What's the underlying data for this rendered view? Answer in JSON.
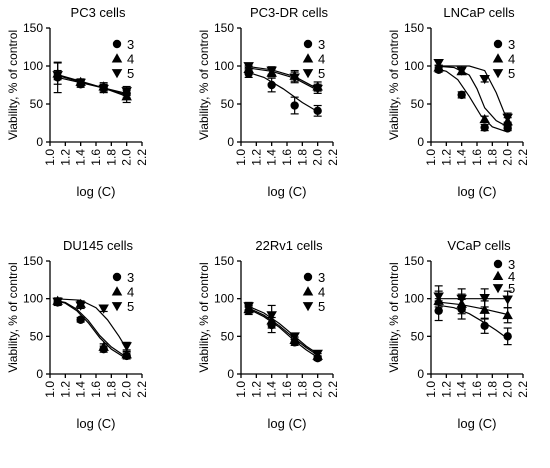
{
  "chart_data": [
    {
      "type": "scatter",
      "title": "PC3 cells",
      "xlabel": "log (C)",
      "ylabel": "Viability, % of control",
      "xlim": [
        1.0,
        2.2
      ],
      "ylim": [
        0,
        150
      ],
      "xticks": [
        "1.0",
        "1.2",
        "1.4",
        "1.6",
        "1.8",
        "2.0",
        "2.2"
      ],
      "yticks": [
        "0",
        "50",
        "100",
        "150"
      ],
      "grid": false,
      "legend_position": "top-right",
      "series": [
        {
          "name": "3",
          "marker": "circle",
          "x": [
            1.1,
            1.4,
            1.7,
            2.0
          ],
          "y": [
            85,
            76,
            71,
            64
          ],
          "err": [
            20,
            4,
            5,
            6
          ],
          "fit": [
            [
              1.05,
              86
            ],
            [
              1.4,
              78
            ],
            [
              1.7,
              71
            ],
            [
              2.0,
              62
            ]
          ]
        },
        {
          "name": "4",
          "marker": "triangle-up",
          "x": [
            1.1,
            1.4,
            1.7,
            2.0
          ],
          "y": [
            90,
            79,
            73,
            60
          ],
          "err": [
            14,
            4,
            5,
            8
          ],
          "fit": [
            [
              1.05,
              90
            ],
            [
              1.4,
              80
            ],
            [
              1.7,
              71
            ],
            [
              2.0,
              60
            ]
          ]
        },
        {
          "name": "5",
          "marker": "triangle-down",
          "x": [
            1.1,
            1.4,
            1.7,
            2.0
          ],
          "y": [
            88,
            78,
            70,
            67
          ],
          "err": [
            6,
            4,
            5,
            6
          ],
          "fit": [
            [
              1.05,
              89
            ],
            [
              1.4,
              79
            ],
            [
              1.7,
              71
            ],
            [
              2.0,
              64
            ]
          ]
        }
      ]
    },
    {
      "type": "scatter",
      "title": "PC3-DR cells",
      "xlabel": "log (C)",
      "ylabel": "Viability, % of control",
      "xlim": [
        1.0,
        2.2
      ],
      "ylim": [
        0,
        150
      ],
      "xticks": [
        "1.0",
        "1.2",
        "1.4",
        "1.6",
        "1.8",
        "2.0",
        "2.2"
      ],
      "yticks": [
        "0",
        "50",
        "100",
        "150"
      ],
      "grid": false,
      "legend_position": "top-right",
      "series": [
        {
          "name": "3",
          "marker": "circle",
          "x": [
            1.1,
            1.4,
            1.7,
            2.0
          ],
          "y": [
            90,
            75,
            48,
            41
          ],
          "err": [
            5,
            9,
            11,
            7
          ],
          "fit": [
            [
              1.05,
              93
            ],
            [
              1.3,
              85
            ],
            [
              1.55,
              70
            ],
            [
              1.8,
              52
            ],
            [
              2.0,
              40
            ]
          ]
        },
        {
          "name": "4",
          "marker": "triangle-up",
          "x": [
            1.1,
            1.4,
            1.7,
            2.0
          ],
          "y": [
            96,
            91,
            87,
            73
          ],
          "err": [
            4,
            5,
            7,
            6
          ],
          "fit": [
            [
              1.05,
              98
            ],
            [
              1.4,
              93
            ],
            [
              1.7,
              84
            ],
            [
              2.0,
              68
            ]
          ]
        },
        {
          "name": "5",
          "marker": "triangle-down",
          "x": [
            1.1,
            1.4,
            1.7,
            2.0
          ],
          "y": [
            100,
            94,
            85,
            70
          ],
          "err": [
            3,
            5,
            7,
            6
          ],
          "fit": [
            [
              1.05,
              100
            ],
            [
              1.4,
              95
            ],
            [
              1.7,
              86
            ],
            [
              2.0,
              70
            ]
          ]
        }
      ]
    },
    {
      "type": "scatter",
      "title": "LNCaP cells",
      "xlabel": "log (C)",
      "ylabel": "Viability, % of control",
      "xlim": [
        1.0,
        2.2
      ],
      "ylim": [
        0,
        150
      ],
      "xticks": [
        "1.0",
        "1.2",
        "1.4",
        "1.6",
        "1.8",
        "2.0",
        "2.2"
      ],
      "yticks": [
        "0",
        "50",
        "100",
        "150"
      ],
      "grid": false,
      "legend_position": "top-right",
      "series": [
        {
          "name": "3",
          "marker": "circle",
          "x": [
            1.1,
            1.4,
            1.7,
            2.0
          ],
          "y": [
            95,
            62,
            19,
            18
          ],
          "err": [
            3,
            4,
            4,
            3
          ],
          "fit": [
            [
              1.05,
              97
            ],
            [
              1.2,
              93
            ],
            [
              1.35,
              82
            ],
            [
              1.5,
              60
            ],
            [
              1.65,
              35
            ],
            [
              1.8,
              20
            ],
            [
              2.0,
              13
            ]
          ]
        },
        {
          "name": "4",
          "marker": "triangle-up",
          "x": [
            1.1,
            1.4,
            1.7,
            2.0
          ],
          "y": [
            98,
            93,
            30,
            27
          ],
          "err": [
            3,
            4,
            4,
            5
          ],
          "fit": [
            [
              1.05,
              100
            ],
            [
              1.3,
              98
            ],
            [
              1.5,
              88
            ],
            [
              1.6,
              70
            ],
            [
              1.7,
              45
            ],
            [
              1.85,
              28
            ],
            [
              2.0,
              20
            ]
          ]
        },
        {
          "name": "5",
          "marker": "triangle-down",
          "x": [
            1.1,
            1.4,
            1.7,
            2.0
          ],
          "y": [
            104,
            94,
            83,
            32
          ],
          "err": [
            3,
            4,
            4,
            6
          ],
          "fit": [
            [
              1.05,
              100
            ],
            [
              1.5,
              100
            ],
            [
              1.7,
              94
            ],
            [
              1.85,
              65
            ],
            [
              1.95,
              40
            ],
            [
              2.0,
              30
            ]
          ]
        }
      ]
    },
    {
      "type": "scatter",
      "title": "DU145 cells",
      "xlabel": "log (C)",
      "ylabel": "Viability, % of control",
      "xlim": [
        1.0,
        2.2
      ],
      "ylim": [
        0,
        150
      ],
      "xticks": [
        "1.0",
        "1.2",
        "1.4",
        "1.6",
        "1.8",
        "2.0",
        "2.2"
      ],
      "yticks": [
        "0",
        "50",
        "100",
        "150"
      ],
      "grid": false,
      "legend_position": "top-right",
      "series": [
        {
          "name": "3",
          "marker": "circle",
          "x": [
            1.1,
            1.4,
            1.7,
            2.0
          ],
          "y": [
            95,
            72,
            33,
            24
          ],
          "err": [
            4,
            3,
            4,
            4
          ],
          "fit": [
            [
              1.05,
              98
            ],
            [
              1.2,
              94
            ],
            [
              1.35,
              84
            ],
            [
              1.5,
              68
            ],
            [
              1.65,
              48
            ],
            [
              1.8,
              33
            ],
            [
              2.0,
              20
            ]
          ]
        },
        {
          "name": "4",
          "marker": "triangle-up",
          "x": [
            1.1,
            1.4,
            1.7,
            2.0
          ],
          "y": [
            97,
            93,
            36,
            26
          ],
          "err": [
            4,
            4,
            4,
            4
          ],
          "fit": [
            [
              1.05,
              98
            ],
            [
              1.2,
              95
            ],
            [
              1.35,
              86
            ],
            [
              1.5,
              71
            ],
            [
              1.65,
              51
            ],
            [
              1.8,
              36
            ],
            [
              2.0,
              22
            ]
          ]
        },
        {
          "name": "5",
          "marker": "triangle-down",
          "x": [
            1.1,
            1.4,
            1.7,
            2.0
          ],
          "y": [
            96,
            91,
            87,
            37
          ],
          "err": [
            4,
            4,
            4,
            5
          ],
          "fit": [
            [
              1.05,
              100
            ],
            [
              1.4,
              98
            ],
            [
              1.6,
              88
            ],
            [
              1.75,
              72
            ],
            [
              1.9,
              50
            ],
            [
              2.0,
              33
            ]
          ]
        }
      ]
    },
    {
      "type": "scatter",
      "title": "22Rv1 cells",
      "xlabel": "log (C)",
      "ylabel": "Viability, % of control",
      "xlim": [
        1.0,
        2.2
      ],
      "ylim": [
        0,
        150
      ],
      "xticks": [
        "1.0",
        "1.2",
        "1.4",
        "1.6",
        "1.8",
        "2.0",
        "2.2"
      ],
      "yticks": [
        "0",
        "50",
        "100",
        "150"
      ],
      "grid": false,
      "legend_position": "top-right",
      "series": [
        {
          "name": "3",
          "marker": "circle",
          "x": [
            1.1,
            1.4,
            1.7,
            2.0
          ],
          "y": [
            84,
            65,
            42,
            21
          ],
          "err": [
            5,
            10,
            4,
            3
          ],
          "fit": [
            [
              1.05,
              89
            ],
            [
              1.3,
              76
            ],
            [
              1.5,
              62
            ],
            [
              1.7,
              44
            ],
            [
              1.85,
              32
            ],
            [
              2.0,
              22
            ]
          ]
        },
        {
          "name": "4",
          "marker": "triangle-up",
          "x": [
            1.1,
            1.4,
            1.7,
            2.0
          ],
          "y": [
            86,
            71,
            45,
            24
          ],
          "err": [
            5,
            10,
            4,
            3
          ],
          "fit": [
            [
              1.05,
              90
            ],
            [
              1.3,
              78
            ],
            [
              1.5,
              64
            ],
            [
              1.7,
              47
            ],
            [
              1.85,
              35
            ],
            [
              2.0,
              25
            ]
          ]
        },
        {
          "name": "5",
          "marker": "triangle-down",
          "x": [
            1.1,
            1.4,
            1.7,
            2.0
          ],
          "y": [
            90,
            78,
            50,
            27
          ],
          "err": [
            5,
            13,
            4,
            4
          ],
          "fit": [
            [
              1.05,
              92
            ],
            [
              1.3,
              81
            ],
            [
              1.5,
              67
            ],
            [
              1.7,
              50
            ],
            [
              1.85,
              37
            ],
            [
              2.0,
              27
            ]
          ]
        }
      ]
    },
    {
      "type": "scatter",
      "title": "VCaP cells",
      "xlabel": "log (C)",
      "ylabel": "Viability, % of control",
      "xlim": [
        1.0,
        2.2
      ],
      "ylim": [
        0,
        150
      ],
      "xticks": [
        "1.0",
        "1.2",
        "1.4",
        "1.6",
        "1.8",
        "2.0",
        "2.2"
      ],
      "yticks": [
        "0",
        "50",
        "100",
        "150"
      ],
      "grid": false,
      "legend_position": "top-right",
      "series": [
        {
          "name": "3",
          "marker": "circle",
          "x": [
            1.1,
            1.4,
            1.7,
            2.0
          ],
          "y": [
            84,
            86,
            64,
            50
          ],
          "err": [
            13,
            13,
            10,
            11
          ],
          "fit": [
            [
              1.05,
              92
            ],
            [
              1.3,
              88
            ],
            [
              1.5,
              80
            ],
            [
              1.7,
              68
            ],
            [
              1.85,
              58
            ],
            [
              2.0,
              47
            ]
          ]
        },
        {
          "name": "4",
          "marker": "triangle-up",
          "x": [
            1.1,
            1.4,
            1.7,
            2.0
          ],
          "y": [
            97,
            93,
            85,
            78
          ],
          "err": [
            13,
            13,
            12,
            10
          ],
          "fit": [
            [
              1.05,
              96
            ],
            [
              1.4,
              92
            ],
            [
              1.7,
              86
            ],
            [
              2.0,
              79
            ]
          ]
        },
        {
          "name": "5",
          "marker": "triangle-down",
          "x": [
            1.1,
            1.4,
            1.7,
            2.0
          ],
          "y": [
            103,
            100,
            101,
            99
          ],
          "err": [
            14,
            13,
            12,
            11
          ],
          "fit": [
            [
              1.05,
              100
            ],
            [
              2.0,
              100
            ]
          ]
        }
      ]
    }
  ]
}
